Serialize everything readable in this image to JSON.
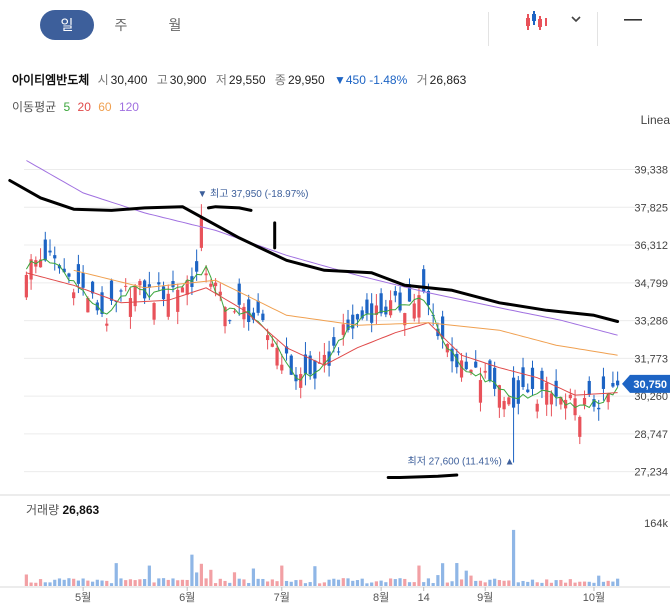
{
  "tabs": [
    {
      "label": "일",
      "active": true
    },
    {
      "label": "주",
      "active": false
    },
    {
      "label": "월",
      "active": false
    }
  ],
  "toolbar": {
    "chart_type_icon": "candlestick-icon",
    "dropdown_icon": "chevron-down-icon",
    "menu_icon": "minus-icon"
  },
  "stock": {
    "name": "아이티엠반도체",
    "open_label": "시",
    "open": "30,400",
    "high_label": "고",
    "high": "30,900",
    "low_label": "저",
    "low": "29,550",
    "close_label": "종",
    "close": "29,950",
    "change": "▼450 -1.48%",
    "volume_label": "거",
    "volume": "26,863"
  },
  "ma_legend": {
    "label": "이동평균",
    "items": [
      {
        "period": "5",
        "color": "#3ca63c"
      },
      {
        "period": "20",
        "color": "#e04a4a"
      },
      {
        "period": "60",
        "color": "#f0a050"
      },
      {
        "period": "120",
        "color": "#a070e0"
      }
    ]
  },
  "scale_label": "Linea",
  "colors": {
    "up": "#e8525a",
    "down": "#1d64c4",
    "volume_up": "#f2a0a4",
    "volume_down": "#8fb6e6",
    "annotation": "#000000"
  },
  "chart_data": {
    "type": "candlestick",
    "y_ticks": [
      "39,338",
      "37,825",
      "36,312",
      "34,799",
      "33,286",
      "31,773",
      "30,260",
      "28,747",
      "27,234"
    ],
    "y_tick_values": [
      39338,
      37825,
      36312,
      34799,
      33286,
      31773,
      30260,
      28747,
      27234
    ],
    "ylim": [
      26500,
      40200
    ],
    "x_ticks": [
      {
        "label": "5월",
        "index": 12
      },
      {
        "label": "6월",
        "index": 34
      },
      {
        "label": "7월",
        "index": 54
      },
      {
        "label": "8월",
        "index": 75
      },
      {
        "label": "14",
        "index": 84
      },
      {
        "label": "9월",
        "index": 97
      },
      {
        "label": "10월",
        "index": 120
      }
    ],
    "n_points": 126,
    "current_price": {
      "label": "30,750",
      "value": 30750
    },
    "max_marker": {
      "text": "▼ 최고 37,950 (-18.97%)",
      "value": 37950,
      "index": 37
    },
    "min_marker": {
      "text": "최저 27,600 (11.41%) ▲",
      "value": 27600,
      "index": 103
    },
    "volume": {
      "title": "거래량",
      "value": "26,863",
      "axis_label": "164k",
      "max": 200000
    },
    "series": [
      {
        "name": "5",
        "anchors": [
          [
            0,
            35400
          ],
          [
            4,
            35900
          ],
          [
            8,
            35200
          ],
          [
            12,
            34500
          ],
          [
            17,
            33400
          ],
          [
            22,
            34600
          ],
          [
            27,
            34300
          ],
          [
            33,
            34700
          ],
          [
            38,
            35400
          ],
          [
            42,
            33700
          ],
          [
            47,
            33600
          ],
          [
            52,
            32500
          ],
          [
            57,
            31000
          ],
          [
            62,
            31200
          ],
          [
            67,
            32700
          ],
          [
            72,
            33600
          ],
          [
            79,
            33900
          ],
          [
            84,
            34200
          ],
          [
            88,
            32600
          ],
          [
            92,
            31300
          ],
          [
            98,
            30900
          ],
          [
            103,
            30200
          ],
          [
            110,
            30400
          ],
          [
            116,
            29800
          ],
          [
            122,
            30100
          ],
          [
            125,
            30600
          ]
        ]
      },
      {
        "name": "20",
        "anchors": [
          [
            0,
            35200
          ],
          [
            10,
            34700
          ],
          [
            20,
            34000
          ],
          [
            30,
            34100
          ],
          [
            38,
            34600
          ],
          [
            46,
            33700
          ],
          [
            55,
            32200
          ],
          [
            63,
            31500
          ],
          [
            70,
            32200
          ],
          [
            78,
            32800
          ],
          [
            85,
            33200
          ],
          [
            92,
            31900
          ],
          [
            100,
            31400
          ],
          [
            108,
            31000
          ],
          [
            116,
            30300
          ],
          [
            125,
            30400
          ]
        ]
      },
      {
        "name": "60",
        "anchors": [
          [
            10,
            35300
          ],
          [
            25,
            34600
          ],
          [
            40,
            34900
          ],
          [
            55,
            33500
          ],
          [
            70,
            33100
          ],
          [
            85,
            33200
          ],
          [
            100,
            32900
          ],
          [
            112,
            32300
          ],
          [
            125,
            31900
          ]
        ]
      },
      {
        "name": "120",
        "anchors": [
          [
            0,
            39700
          ],
          [
            12,
            38400
          ],
          [
            25,
            37600
          ],
          [
            40,
            36900
          ],
          [
            55,
            35900
          ],
          [
            70,
            35100
          ],
          [
            85,
            34400
          ],
          [
            100,
            33800
          ],
          [
            113,
            33300
          ],
          [
            125,
            32700
          ]
        ]
      }
    ],
    "annotations": [
      {
        "name": "trend-line",
        "points": [
          [
            -3.5,
            38900
          ],
          [
            3,
            38200
          ],
          [
            10,
            37750
          ],
          [
            18,
            37700
          ],
          [
            25,
            37800
          ],
          [
            33,
            37850
          ],
          [
            45,
            36600
          ],
          [
            55,
            35700
          ],
          [
            63,
            35300
          ],
          [
            73,
            35200
          ],
          [
            80,
            34700
          ],
          [
            90,
            34500
          ],
          [
            100,
            34000
          ],
          [
            110,
            33700
          ],
          [
            120,
            33500
          ],
          [
            125,
            33250
          ]
        ]
      },
      {
        "name": "tick-mark",
        "points": [
          [
            52.5,
            37200
          ],
          [
            52.5,
            36200
          ]
        ]
      },
      {
        "name": "max-underline",
        "points": [
          [
            38.5,
            37800
          ],
          [
            40,
            37850
          ],
          [
            45,
            37800
          ],
          [
            47.5,
            37700
          ]
        ]
      },
      {
        "name": "min-underline",
        "points": [
          [
            76.5,
            27000
          ],
          [
            79,
            27000
          ],
          [
            87,
            27050
          ],
          [
            91,
            27100
          ]
        ]
      }
    ]
  }
}
